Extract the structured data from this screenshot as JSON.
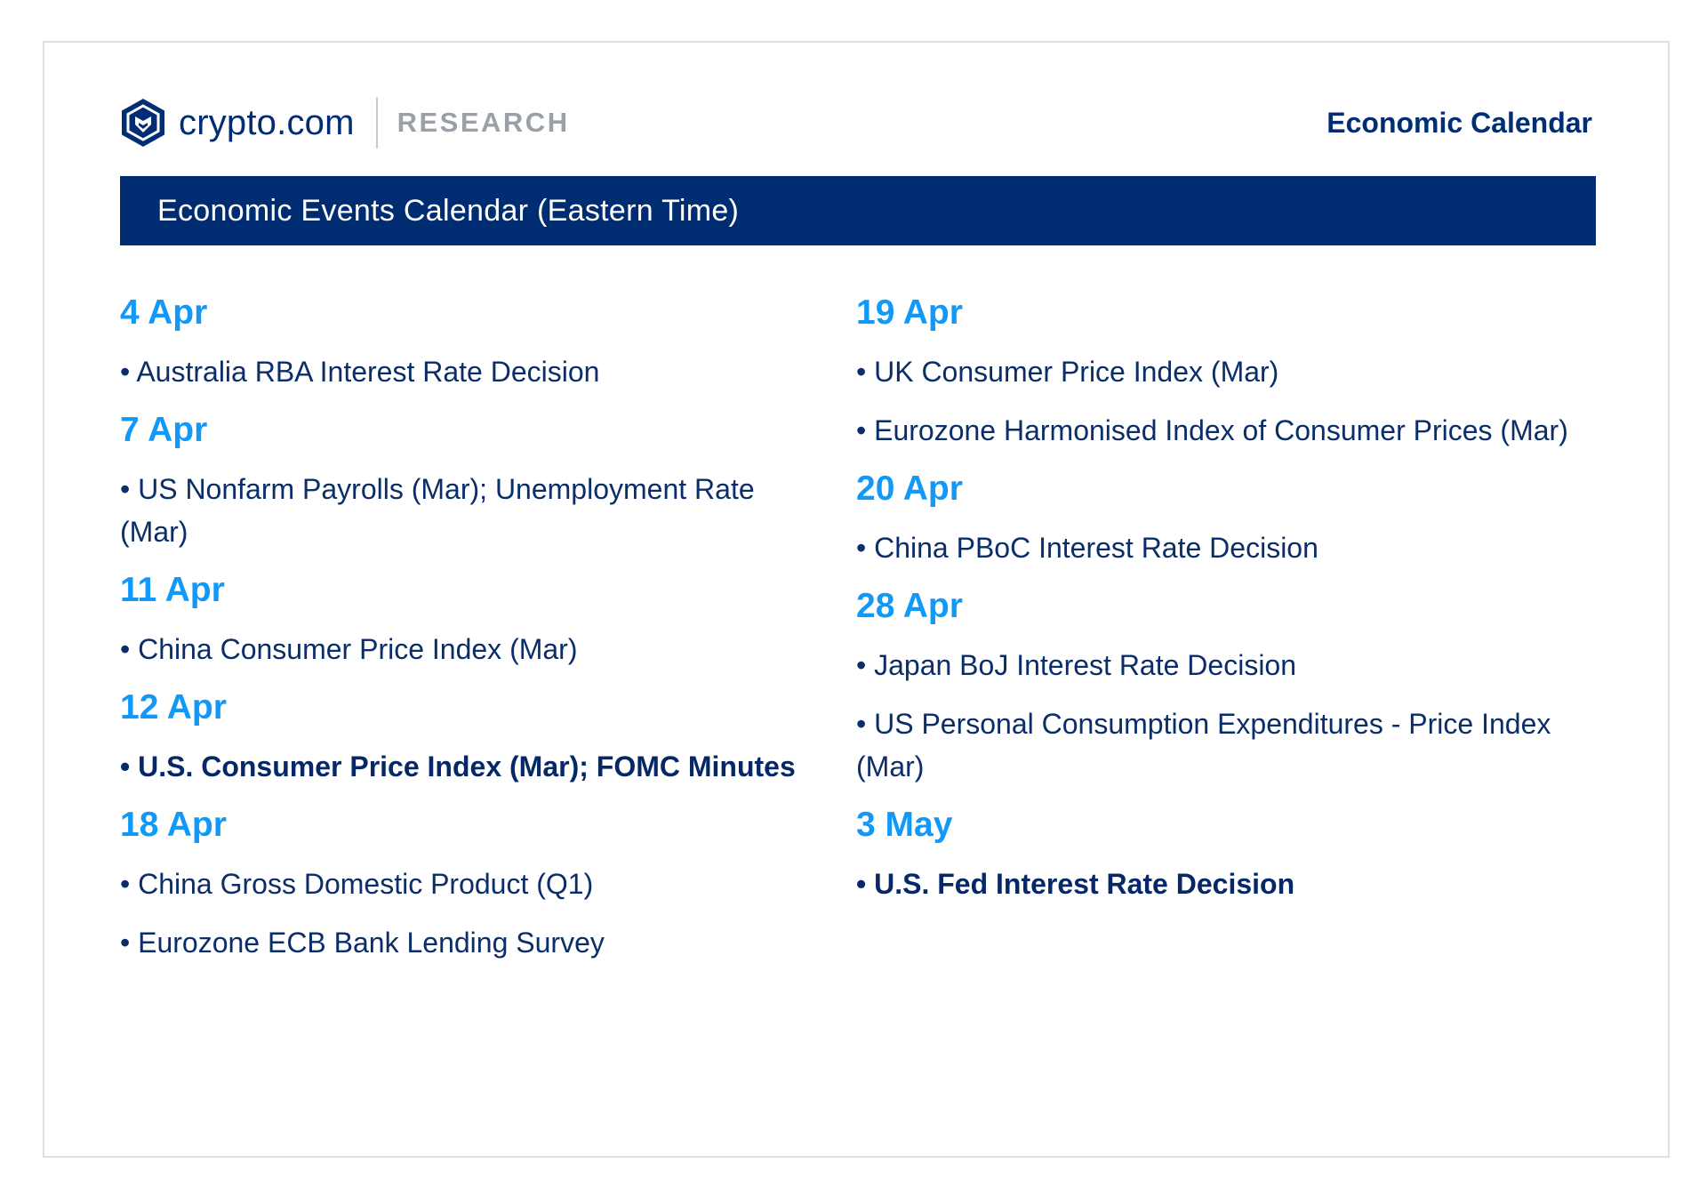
{
  "header": {
    "brand": "crypto.com",
    "section": "RESEARCH",
    "title": "Economic Calendar",
    "colors": {
      "navy": "#002d72",
      "accent": "#1199fa",
      "muted": "#9aa0a8"
    }
  },
  "banner": {
    "title": "Economic Events Calendar (Eastern Time)"
  },
  "columns": [
    {
      "days": [
        {
          "date": "4 Apr",
          "events": [
            {
              "text": "• Australia RBA Interest Rate Decision",
              "highlight": false
            }
          ]
        },
        {
          "date": "7 Apr",
          "events": [
            {
              "text": "• US Nonfarm Payrolls (Mar); Unemployment Rate (Mar)",
              "highlight": false
            }
          ]
        },
        {
          "date": "11 Apr",
          "events": [
            {
              "text": "• China Consumer Price Index (Mar)",
              "highlight": false
            }
          ]
        },
        {
          "date": "12 Apr",
          "events": [
            {
              "text": "• U.S. Consumer Price Index (Mar); FOMC Minutes",
              "highlight": true
            }
          ]
        },
        {
          "date": "18 Apr",
          "events": [
            {
              "text": "• China Gross Domestic Product (Q1)",
              "highlight": false
            },
            {
              "text": "• Eurozone ECB Bank Lending Survey",
              "highlight": false
            }
          ]
        }
      ]
    },
    {
      "days": [
        {
          "date": "19 Apr",
          "events": [
            {
              "text": "• UK Consumer Price Index (Mar)",
              "highlight": false
            },
            {
              "text": "• Eurozone Harmonised Index of Consumer Prices (Mar)",
              "highlight": false
            }
          ]
        },
        {
          "date": "20 Apr",
          "events": [
            {
              "text": "• China PBoC Interest Rate Decision",
              "highlight": false
            }
          ]
        },
        {
          "date": "28 Apr",
          "events": [
            {
              "text": "• Japan BoJ Interest Rate Decision",
              "highlight": false
            },
            {
              "text": "• US Personal Consumption Expenditures - Price Index (Mar)",
              "highlight": false
            }
          ]
        },
        {
          "date": "3 May",
          "events": [
            {
              "text": "• U.S. Fed Interest Rate Decision",
              "highlight": true
            }
          ]
        }
      ]
    }
  ]
}
